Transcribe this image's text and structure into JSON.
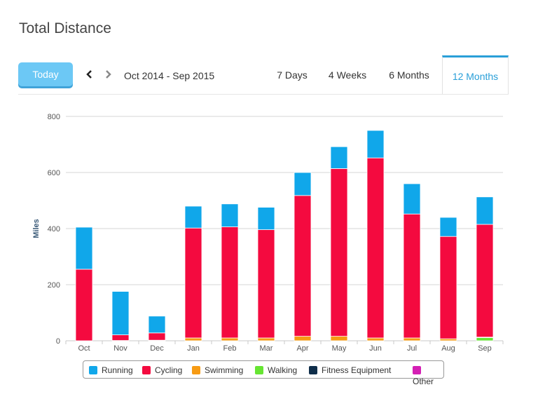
{
  "header": {
    "title": "Total Distance"
  },
  "toolbar": {
    "today_label": "Today",
    "range_label": "Oct 2014 - Sep 2015",
    "tabs": [
      {
        "label": "7 Days",
        "active": false
      },
      {
        "label": "4 Weeks",
        "active": false
      },
      {
        "label": "6 Months",
        "active": false
      },
      {
        "label": "12 Months",
        "active": true
      }
    ],
    "prev_icon": "chevron-left-icon",
    "next_icon": "chevron-right-icon"
  },
  "chart_data": {
    "type": "bar",
    "stacked": true,
    "title": "",
    "xlabel": "",
    "ylabel": "Miles",
    "ylim": [
      0,
      800
    ],
    "yticks": [
      0,
      200,
      400,
      600,
      800
    ],
    "grid": true,
    "legend_position": "bottom",
    "categories": [
      "Oct",
      "Nov",
      "Dec",
      "Jan",
      "Feb",
      "Mar",
      "Apr",
      "May",
      "Jun",
      "Jul",
      "Aug",
      "Sep"
    ],
    "series": [
      {
        "name": "Running",
        "color": "#10a7ea",
        "values": [
          150,
          155,
          60,
          78,
          82,
          80,
          82,
          78,
          98,
          108,
          68,
          98
        ]
      },
      {
        "name": "Cycling",
        "color": "#f40a3f",
        "values": [
          255,
          20,
          26,
          392,
          396,
          386,
          502,
          598,
          642,
          442,
          365,
          402
        ]
      },
      {
        "name": "Swimming",
        "color": "#f79b13",
        "values": [
          0,
          1,
          2,
          10,
          10,
          10,
          16,
          16,
          10,
          10,
          7,
          2
        ]
      },
      {
        "name": "Walking",
        "color": "#66e532",
        "values": [
          0,
          0,
          0,
          0,
          0,
          0,
          0,
          0,
          0,
          0,
          0,
          11
        ]
      },
      {
        "name": "Fitness Equipment",
        "color": "#0f2e4a",
        "values": [
          0,
          0,
          0,
          0,
          0,
          0,
          0,
          0,
          0,
          0,
          0,
          0
        ]
      },
      {
        "name": "Other",
        "color": "#d41fb4",
        "values": [
          0,
          0,
          0,
          0,
          0,
          0,
          0,
          0,
          0,
          0,
          0,
          0
        ]
      }
    ]
  }
}
